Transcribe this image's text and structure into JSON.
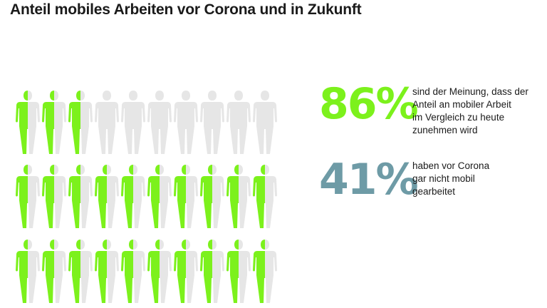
{
  "title": "Anteil mobiles Arbeiten vor Corona und in Zukunft",
  "colors": {
    "green": "#7cf11c",
    "gray": "#e6e6e6",
    "blue": "#6e9ba6",
    "text": "#1a1a1a"
  },
  "icon": "person-silhouette",
  "stats": [
    {
      "value": "86%",
      "color": "#7cf11c",
      "lines": [
        "sind der Meinung, dass der",
        "Anteil an mobiler Arbeit",
        "im Vergleich zu heute",
        "zunehmen wird"
      ]
    },
    {
      "value": "41%",
      "color": "#6e9ba6",
      "lines": [
        "haben vor Corona",
        "gar nicht mobil",
        "gearbeitet"
      ]
    }
  ],
  "chart_data": {
    "type": "pictogram",
    "rows": 3,
    "columns": 10,
    "unit_fill": [
      [
        0.5,
        0.5,
        0.5,
        0,
        0,
        0,
        0,
        0,
        0,
        0
      ],
      [
        0.5,
        0.5,
        0.5,
        0.5,
        0.5,
        0.5,
        0.5,
        0.5,
        0.5,
        0.5
      ],
      [
        0.5,
        0.5,
        0.5,
        0.5,
        0.5,
        0.5,
        0.5,
        0.5,
        0.5,
        0.5
      ]
    ]
  }
}
